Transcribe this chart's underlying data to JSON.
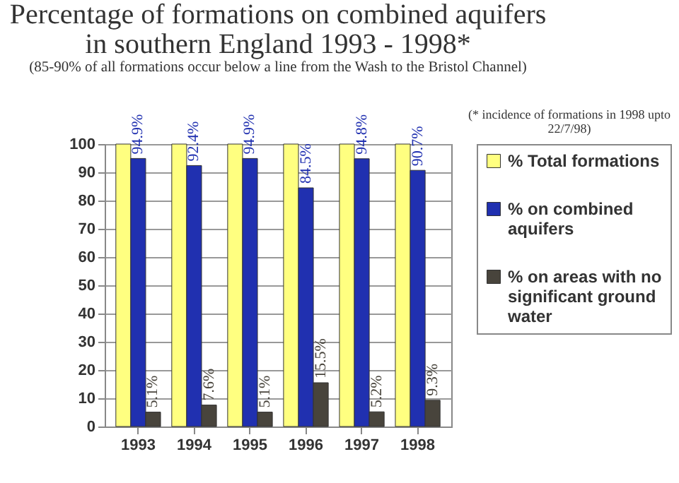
{
  "chart_data": {
    "type": "bar",
    "title": "Percentage of formations on combined aquifers in southern England 1993 - 1998*",
    "subtitle": "(85-90% of all formations occur below a line from the Wash to the Bristol Channel)",
    "annotations": [
      "(* incidence of formations in 1998 upto 22/7/98)"
    ],
    "categories": [
      "1993",
      "1994",
      "1995",
      "1996",
      "1997",
      "1998"
    ],
    "series": [
      {
        "name": "% Total formations",
        "color": "#ffff80",
        "values": [
          100,
          100,
          100,
          100,
          100,
          100
        ]
      },
      {
        "name": "% on combined aquifers",
        "color": "#2030b0",
        "values": [
          94.9,
          92.4,
          94.9,
          84.5,
          94.8,
          90.7
        ],
        "value_labels": [
          "94.9%",
          "92.4%",
          "94.9%",
          "84.5%",
          "94.8%",
          "90.7%"
        ]
      },
      {
        "name": "% on areas with no significant ground water",
        "color": "#48443c",
        "values": [
          5.1,
          7.6,
          5.1,
          15.5,
          5.2,
          9.3
        ],
        "value_labels": [
          "5.1%",
          "7.6%",
          "5.1%",
          "15.5%",
          "5.2%",
          "9.3%"
        ]
      }
    ],
    "ylim": [
      0,
      100
    ],
    "yticks": [
      0,
      10,
      20,
      30,
      40,
      50,
      60,
      70,
      80,
      90,
      100
    ],
    "grid": "y",
    "legend": "right"
  }
}
